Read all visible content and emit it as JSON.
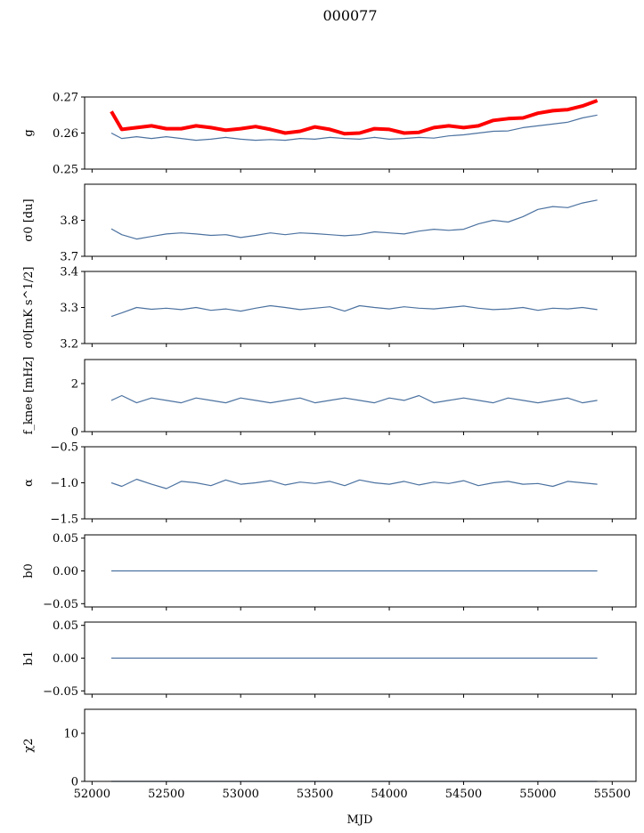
{
  "figure": {
    "suptitle": "000077",
    "xlabel": "MJD"
  },
  "colors": {
    "series": "#4c72a0",
    "highlight": "#ff0000"
  },
  "x_axis": {
    "xlim": [
      51950,
      55660
    ],
    "ticks": [
      52000,
      52500,
      53000,
      53500,
      54000,
      54500,
      55000,
      55500
    ]
  },
  "chart_data": [
    {
      "type": "line",
      "ylabel": "g",
      "ylim": [
        0.25,
        0.27
      ],
      "yticks": [
        "0.25",
        "0.26",
        "0.27"
      ],
      "ytick_values": [
        0.25,
        0.26,
        0.27
      ],
      "x": [
        52130,
        52200,
        52300,
        52400,
        52500,
        52600,
        52700,
        52800,
        52900,
        53000,
        53100,
        53200,
        53300,
        53400,
        53500,
        53600,
        53700,
        53800,
        53900,
        54000,
        54100,
        54200,
        54300,
        54400,
        54500,
        54600,
        54700,
        54800,
        54900,
        55000,
        55100,
        55200,
        55300,
        55400
      ],
      "series": [
        {
          "name": "",
          "color": "#4c72a0",
          "values": [
            0.26,
            0.2585,
            0.259,
            0.2585,
            0.259,
            0.2585,
            0.258,
            0.2583,
            0.2588,
            0.2583,
            0.258,
            0.2582,
            0.258,
            0.2585,
            0.2583,
            0.2588,
            0.2585,
            0.2583,
            0.2588,
            0.2583,
            0.2585,
            0.2588,
            0.2586,
            0.2592,
            0.2595,
            0.26,
            0.2605,
            0.2606,
            0.2615,
            0.262,
            0.2625,
            0.263,
            0.2642,
            0.265
          ]
        },
        {
          "name": "",
          "color": "#ff0000",
          "values": [
            0.266,
            0.261,
            0.2615,
            0.262,
            0.2612,
            0.2612,
            0.262,
            0.2615,
            0.2608,
            0.2612,
            0.2618,
            0.261,
            0.26,
            0.2605,
            0.2617,
            0.261,
            0.2598,
            0.26,
            0.2612,
            0.261,
            0.26,
            0.2602,
            0.2615,
            0.262,
            0.2615,
            0.262,
            0.2635,
            0.264,
            0.2642,
            0.2655,
            0.2662,
            0.2665,
            0.2675,
            0.269
          ]
        }
      ]
    },
    {
      "type": "line",
      "ylabel": "σ0 [du]",
      "ylim": [
        3.7,
        3.9
      ],
      "yticks": [
        "3.7",
        "3.8"
      ],
      "ytick_values": [
        3.7,
        3.8
      ],
      "x": [
        52130,
        52200,
        52300,
        52400,
        52500,
        52600,
        52700,
        52800,
        52900,
        53000,
        53100,
        53200,
        53300,
        53400,
        53500,
        53600,
        53700,
        53800,
        53900,
        54000,
        54100,
        54200,
        54300,
        54400,
        54500,
        54600,
        54700,
        54800,
        54900,
        55000,
        55100,
        55200,
        55300,
        55400
      ],
      "series": [
        {
          "name": "",
          "color": "#4c72a0",
          "values": [
            3.776,
            3.76,
            3.748,
            3.755,
            3.762,
            3.765,
            3.762,
            3.758,
            3.76,
            3.752,
            3.758,
            3.765,
            3.76,
            3.765,
            3.763,
            3.76,
            3.757,
            3.76,
            3.768,
            3.765,
            3.762,
            3.77,
            3.775,
            3.772,
            3.775,
            3.79,
            3.8,
            3.795,
            3.81,
            3.83,
            3.838,
            3.835,
            3.848,
            3.856
          ]
        }
      ]
    },
    {
      "type": "line",
      "ylabel": "σ0[mK s^1/2]",
      "ylim": [
        3.2,
        3.4
      ],
      "yticks": [
        "3.2",
        "3.3",
        "3.4"
      ],
      "ytick_values": [
        3.2,
        3.3,
        3.4
      ],
      "x": [
        52130,
        52200,
        52300,
        52400,
        52500,
        52600,
        52700,
        52800,
        52900,
        53000,
        53100,
        53200,
        53300,
        53400,
        53500,
        53600,
        53700,
        53800,
        53900,
        54000,
        54100,
        54200,
        54300,
        54400,
        54500,
        54600,
        54700,
        54800,
        54900,
        55000,
        55100,
        55200,
        55300,
        55400
      ],
      "series": [
        {
          "name": "",
          "color": "#4c72a0",
          "values": [
            3.275,
            3.285,
            3.3,
            3.295,
            3.298,
            3.294,
            3.3,
            3.292,
            3.296,
            3.29,
            3.298,
            3.305,
            3.3,
            3.294,
            3.298,
            3.302,
            3.29,
            3.305,
            3.3,
            3.296,
            3.302,
            3.298,
            3.296,
            3.3,
            3.304,
            3.298,
            3.294,
            3.296,
            3.3,
            3.292,
            3.298,
            3.296,
            3.3,
            3.294
          ]
        }
      ]
    },
    {
      "type": "line",
      "ylabel": "f_knee [mHz]",
      "ylim": [
        0,
        3
      ],
      "yticks": [
        "0",
        "2"
      ],
      "ytick_values": [
        0,
        2
      ],
      "x": [
        52130,
        52200,
        52300,
        52400,
        52500,
        52600,
        52700,
        52800,
        52900,
        53000,
        53100,
        53200,
        53300,
        53400,
        53500,
        53600,
        53700,
        53800,
        53900,
        54000,
        54100,
        54200,
        54300,
        54400,
        54500,
        54600,
        54700,
        54800,
        54900,
        55000,
        55100,
        55200,
        55300,
        55400
      ],
      "series": [
        {
          "name": "",
          "color": "#4c72a0",
          "values": [
            1.3,
            1.5,
            1.2,
            1.4,
            1.3,
            1.2,
            1.4,
            1.3,
            1.2,
            1.4,
            1.3,
            1.2,
            1.3,
            1.4,
            1.2,
            1.3,
            1.4,
            1.3,
            1.2,
            1.4,
            1.3,
            1.5,
            1.2,
            1.3,
            1.4,
            1.3,
            1.2,
            1.4,
            1.3,
            1.2,
            1.3,
            1.4,
            1.2,
            1.3
          ]
        }
      ]
    },
    {
      "type": "line",
      "ylabel": "α",
      "ylim": [
        -1.5,
        -0.5
      ],
      "yticks": [
        "−1.5",
        "−1.0",
        "−0.5"
      ],
      "ytick_values": [
        -1.5,
        -1.0,
        -0.5
      ],
      "x": [
        52130,
        52200,
        52300,
        52400,
        52500,
        52600,
        52700,
        52800,
        52900,
        53000,
        53100,
        53200,
        53300,
        53400,
        53500,
        53600,
        53700,
        53800,
        53900,
        54000,
        54100,
        54200,
        54300,
        54400,
        54500,
        54600,
        54700,
        54800,
        54900,
        55000,
        55100,
        55200,
        55300,
        55400
      ],
      "series": [
        {
          "name": "",
          "color": "#4c72a0",
          "values": [
            -1.0,
            -1.05,
            -0.95,
            -1.02,
            -1.08,
            -0.98,
            -1.0,
            -1.04,
            -0.96,
            -1.02,
            -1.0,
            -0.97,
            -1.03,
            -0.99,
            -1.01,
            -0.98,
            -1.04,
            -0.96,
            -1.0,
            -1.02,
            -0.98,
            -1.03,
            -0.99,
            -1.01,
            -0.97,
            -1.04,
            -1.0,
            -0.98,
            -1.02,
            -1.01,
            -1.05,
            -0.98,
            -1.0,
            -1.02
          ]
        }
      ]
    },
    {
      "type": "line",
      "ylabel": "b0",
      "ylim": [
        -0.055,
        0.055
      ],
      "yticks": [
        "−0.05",
        "0.00",
        "0.05"
      ],
      "ytick_values": [
        -0.05,
        0.0,
        0.05
      ],
      "x": [
        52130,
        55400
      ],
      "series": [
        {
          "name": "",
          "color": "#4c72a0",
          "values": [
            0.0,
            0.0
          ]
        }
      ]
    },
    {
      "type": "line",
      "ylabel": "b1",
      "ylim": [
        -0.055,
        0.055
      ],
      "yticks": [
        "−0.05",
        "0.00",
        "0.05"
      ],
      "ytick_values": [
        -0.05,
        0.0,
        0.05
      ],
      "x": [
        52130,
        55400
      ],
      "series": [
        {
          "name": "",
          "color": "#4c72a0",
          "values": [
            0.0,
            0.0
          ]
        }
      ]
    },
    {
      "type": "line",
      "ylabel": "χ2",
      "ylim": [
        0,
        15
      ],
      "yticks": [
        "0",
        "10"
      ],
      "ytick_values": [
        0,
        10
      ],
      "x": [
        52130,
        55400
      ],
      "series": [
        {
          "name": "",
          "color": "#4c72a0",
          "values": [
            0.0,
            0.0
          ]
        }
      ]
    }
  ]
}
